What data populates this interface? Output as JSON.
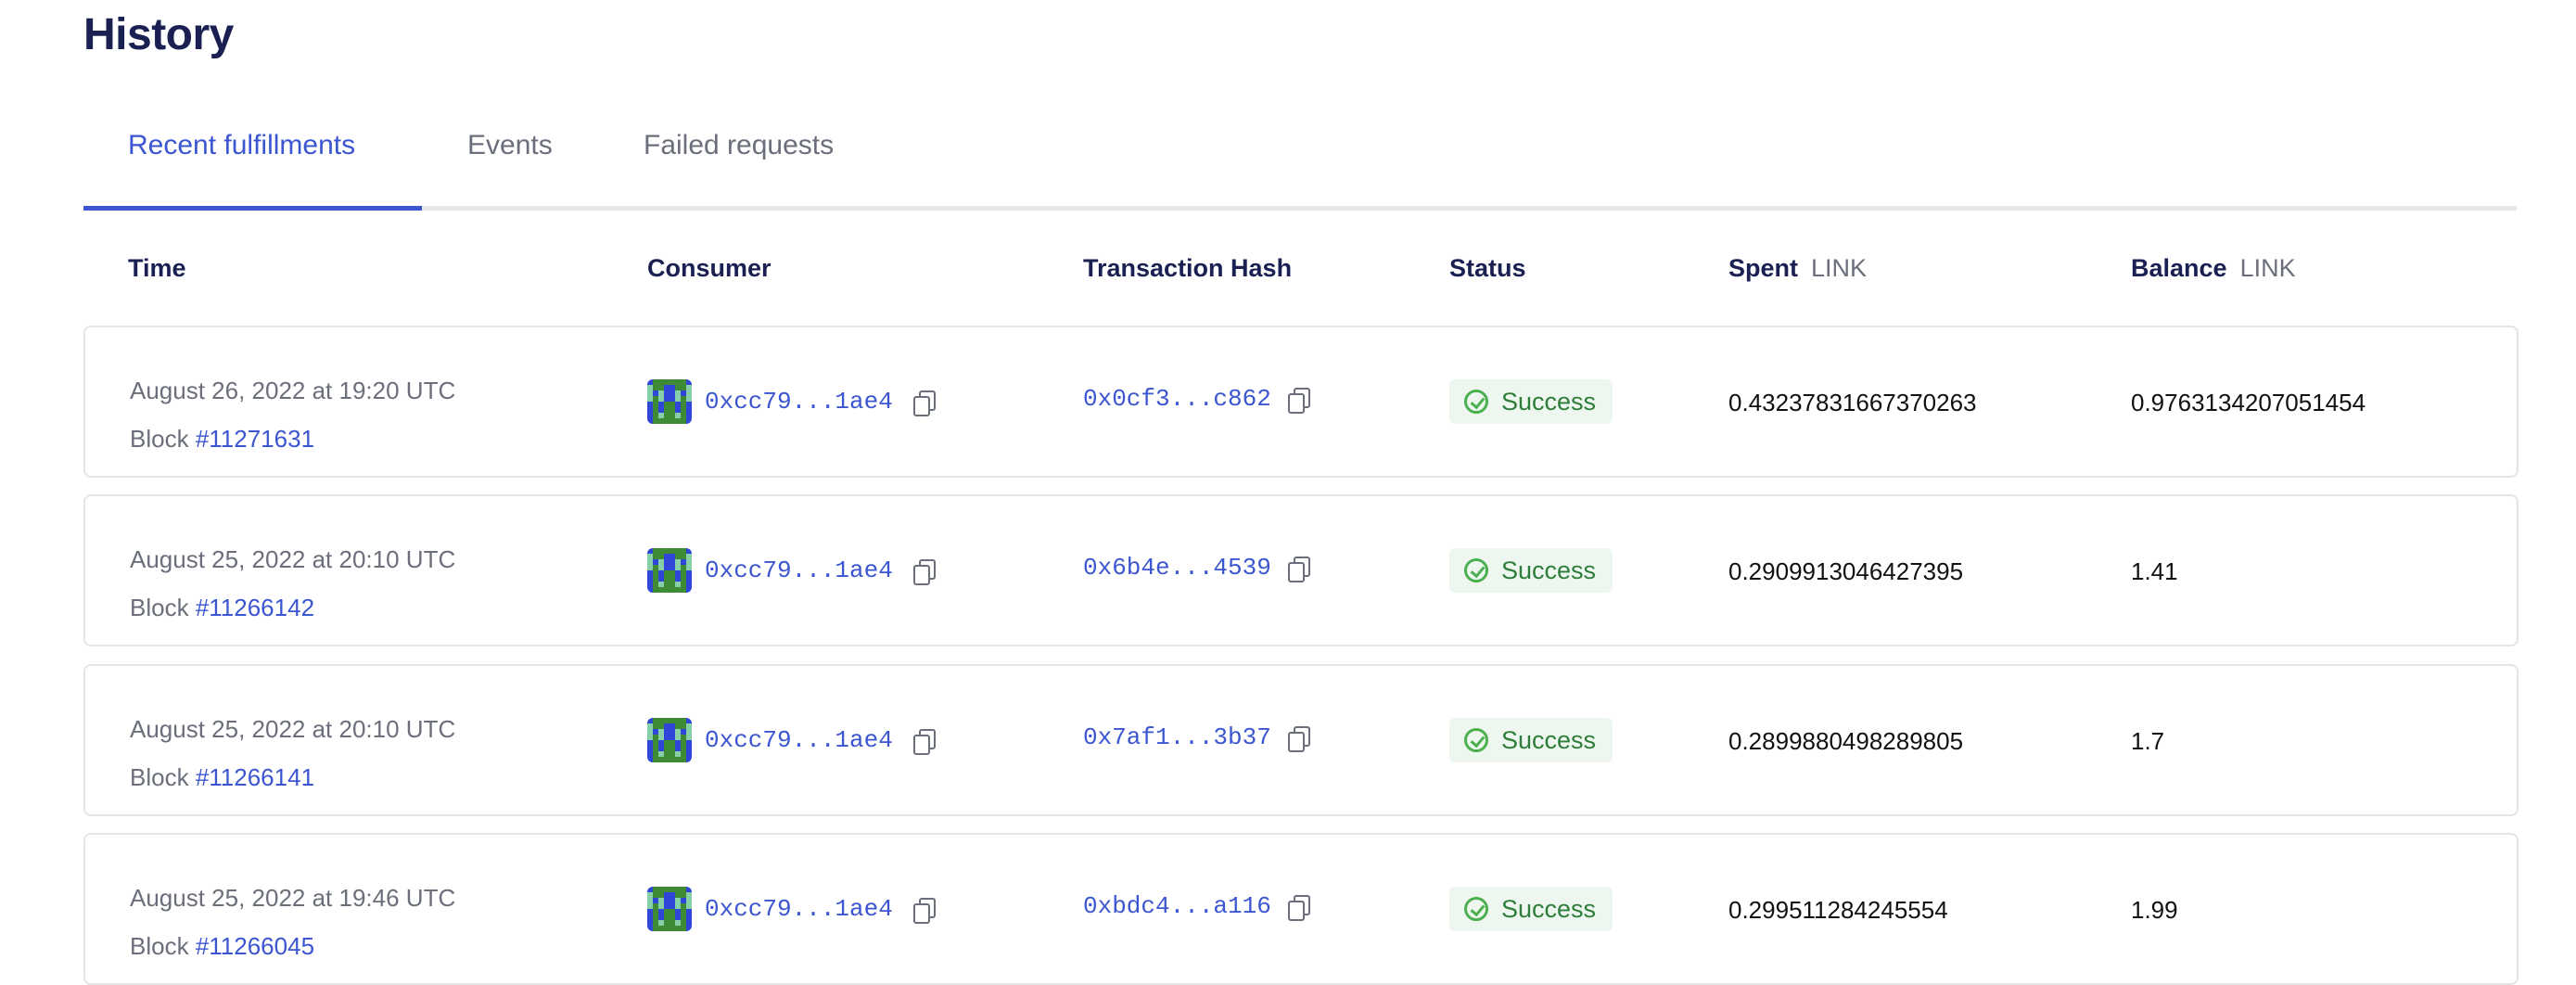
{
  "page": {
    "title": "History"
  },
  "tabs": [
    {
      "label": "Recent fulfillments",
      "active": true
    },
    {
      "label": "Events",
      "active": false
    },
    {
      "label": "Failed requests",
      "active": false
    }
  ],
  "columns": {
    "time": "Time",
    "consumer": "Consumer",
    "hash": "Transaction Hash",
    "status": "Status",
    "spent": "Spent",
    "spent_unit": "LINK",
    "balance": "Balance",
    "balance_unit": "LINK"
  },
  "colors": {
    "accent": "#3b56d0",
    "success": "#2e7d3a",
    "heading": "#1a2052"
  },
  "rows": [
    {
      "time": "August 26, 2022 at 19:20 UTC",
      "block_label": "Block",
      "block": "#11271631",
      "consumer": "0xcc79...1ae4",
      "hash": "0x0cf3...c862",
      "status": "Success",
      "spent": "0.43237831667370263",
      "balance": "0.9763134207051454"
    },
    {
      "time": "August 25, 2022 at 20:10 UTC",
      "block_label": "Block",
      "block": "#11266142",
      "consumer": "0xcc79...1ae4",
      "hash": "0x6b4e...4539",
      "status": "Success",
      "spent": "0.2909913046427395",
      "balance": "1.41"
    },
    {
      "time": "August 25, 2022 at 20:10 UTC",
      "block_label": "Block",
      "block": "#11266141",
      "consumer": "0xcc79...1ae4",
      "hash": "0x7af1...3b37",
      "status": "Success",
      "spent": "0.2899880498289805",
      "balance": "1.7"
    },
    {
      "time": "August 25, 2022 at 19:46 UTC",
      "block_label": "Block",
      "block": "#11266045",
      "consumer": "0xcc79...1ae4",
      "hash": "0xbdc4...a116",
      "status": "Success",
      "spent": "0.299511284245554",
      "balance": "1.99"
    }
  ]
}
